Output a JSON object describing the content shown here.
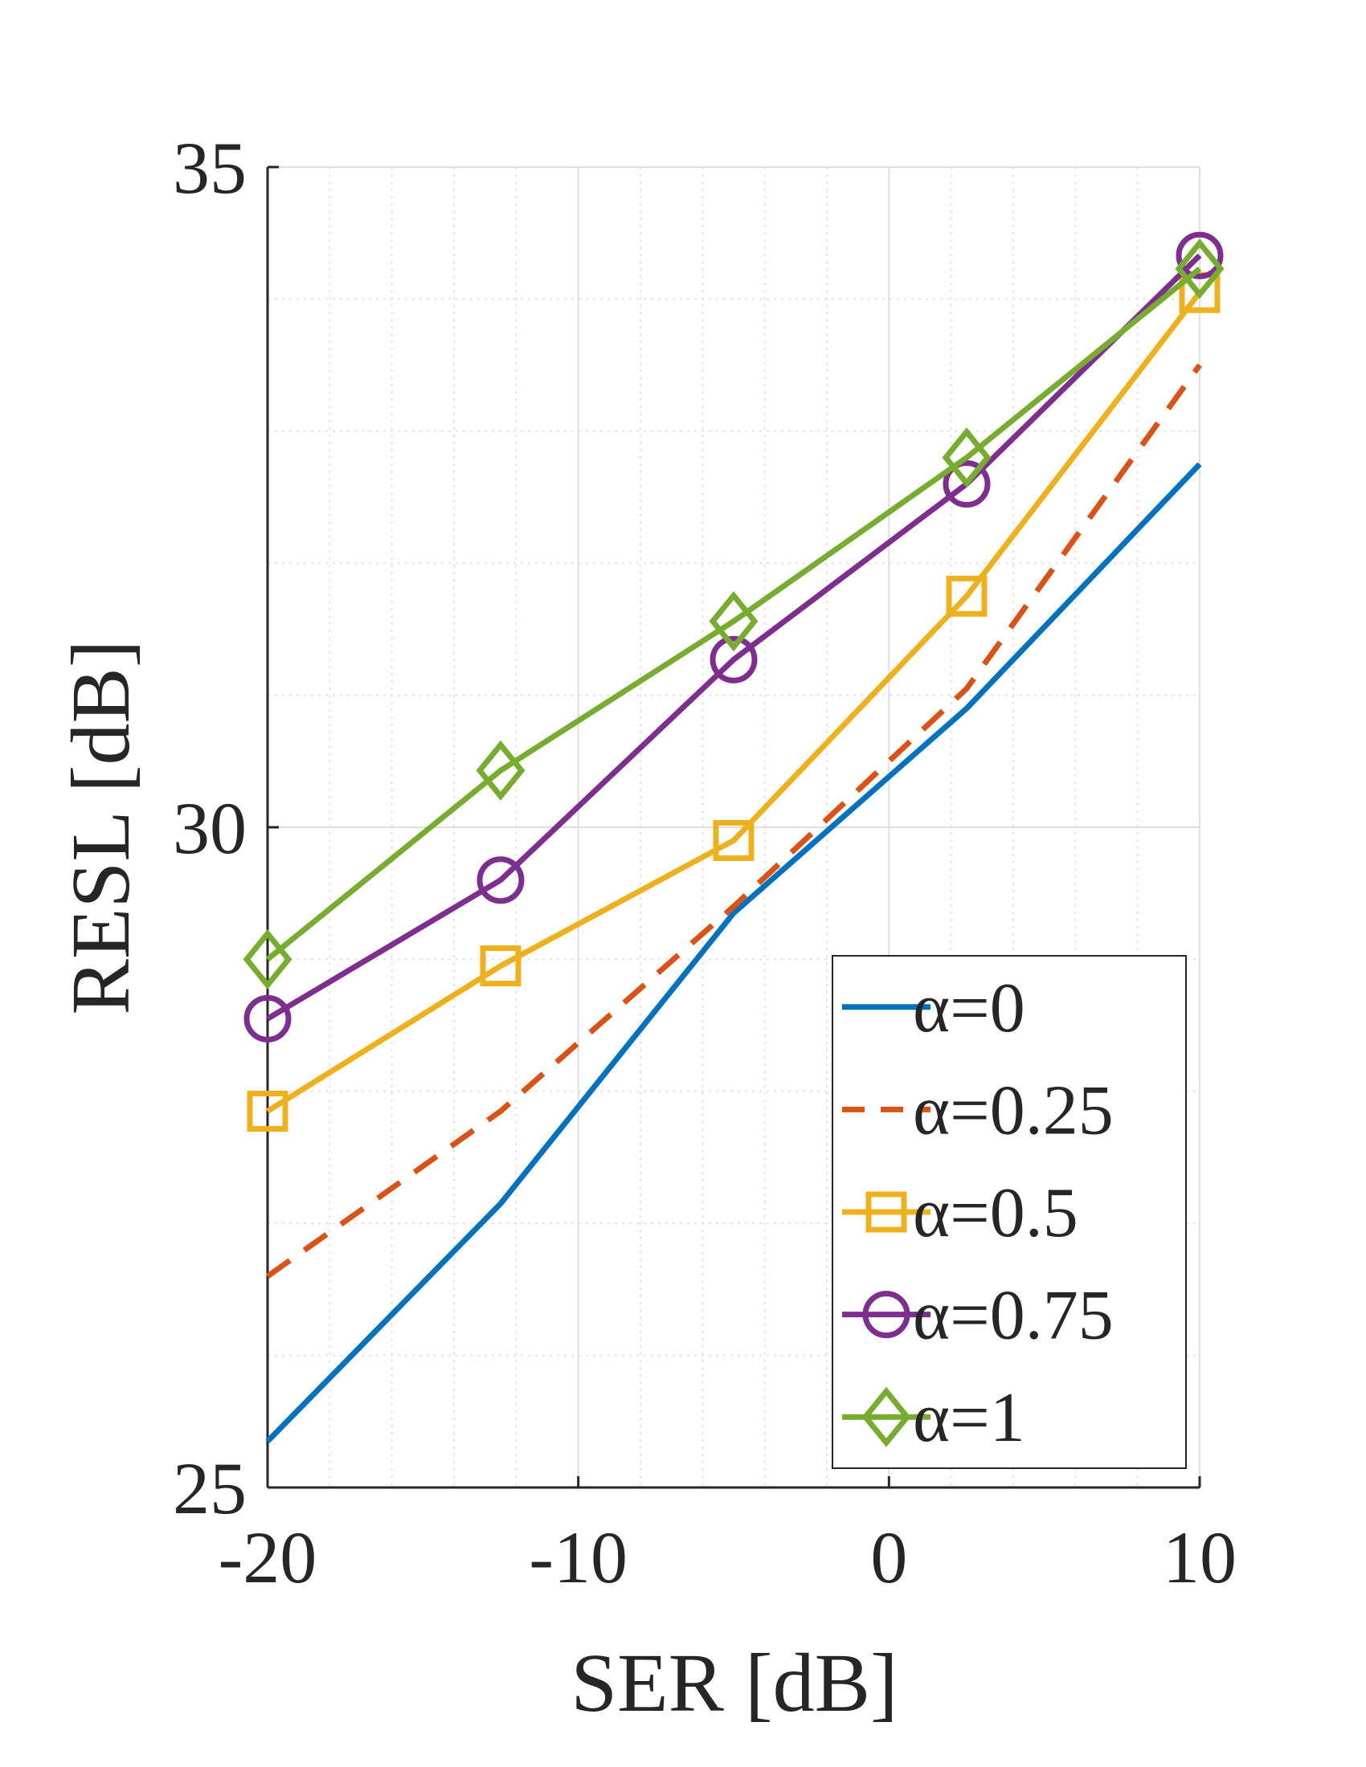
{
  "chart_data": {
    "type": "line",
    "title": "",
    "xlabel": "SER [dB]",
    "ylabel": "RESL [dB]",
    "xlim": [
      -20,
      10
    ],
    "ylim": [
      25,
      35
    ],
    "xticks": [
      -20,
      -10,
      0,
      10
    ],
    "yticks": [
      25,
      30,
      35
    ],
    "xtick_labels": [
      "-20",
      "-10",
      "0",
      "10"
    ],
    "ytick_labels": [
      "25",
      "30",
      "35"
    ],
    "grid": true,
    "minor_grid": true,
    "legend_position": "bottom-right",
    "x": [
      -20,
      -12.5,
      -5,
      2.5,
      10
    ],
    "series": [
      {
        "name": "α=0",
        "color": "#0072BD",
        "dash": "solid",
        "marker": "none",
        "values": [
          25.35,
          27.15,
          29.35,
          30.9,
          32.75
        ]
      },
      {
        "name": "α=0.25",
        "color": "#D95319",
        "dash": "dashed",
        "marker": "none",
        "values": [
          26.6,
          27.85,
          29.4,
          31.05,
          33.5
        ]
      },
      {
        "name": "α=0.5",
        "color": "#EDB120",
        "dash": "solid",
        "marker": "square",
        "values": [
          27.85,
          28.95,
          29.9,
          31.75,
          34.05
        ]
      },
      {
        "name": "α=0.75",
        "color": "#7E2F8E",
        "dash": "solid",
        "marker": "circle",
        "values": [
          28.55,
          29.6,
          31.27,
          32.6,
          34.33
        ]
      },
      {
        "name": "α=1",
        "color": "#77AC30",
        "dash": "solid",
        "marker": "diamond",
        "values": [
          29.0,
          30.43,
          31.56,
          32.8,
          34.23
        ]
      }
    ]
  }
}
